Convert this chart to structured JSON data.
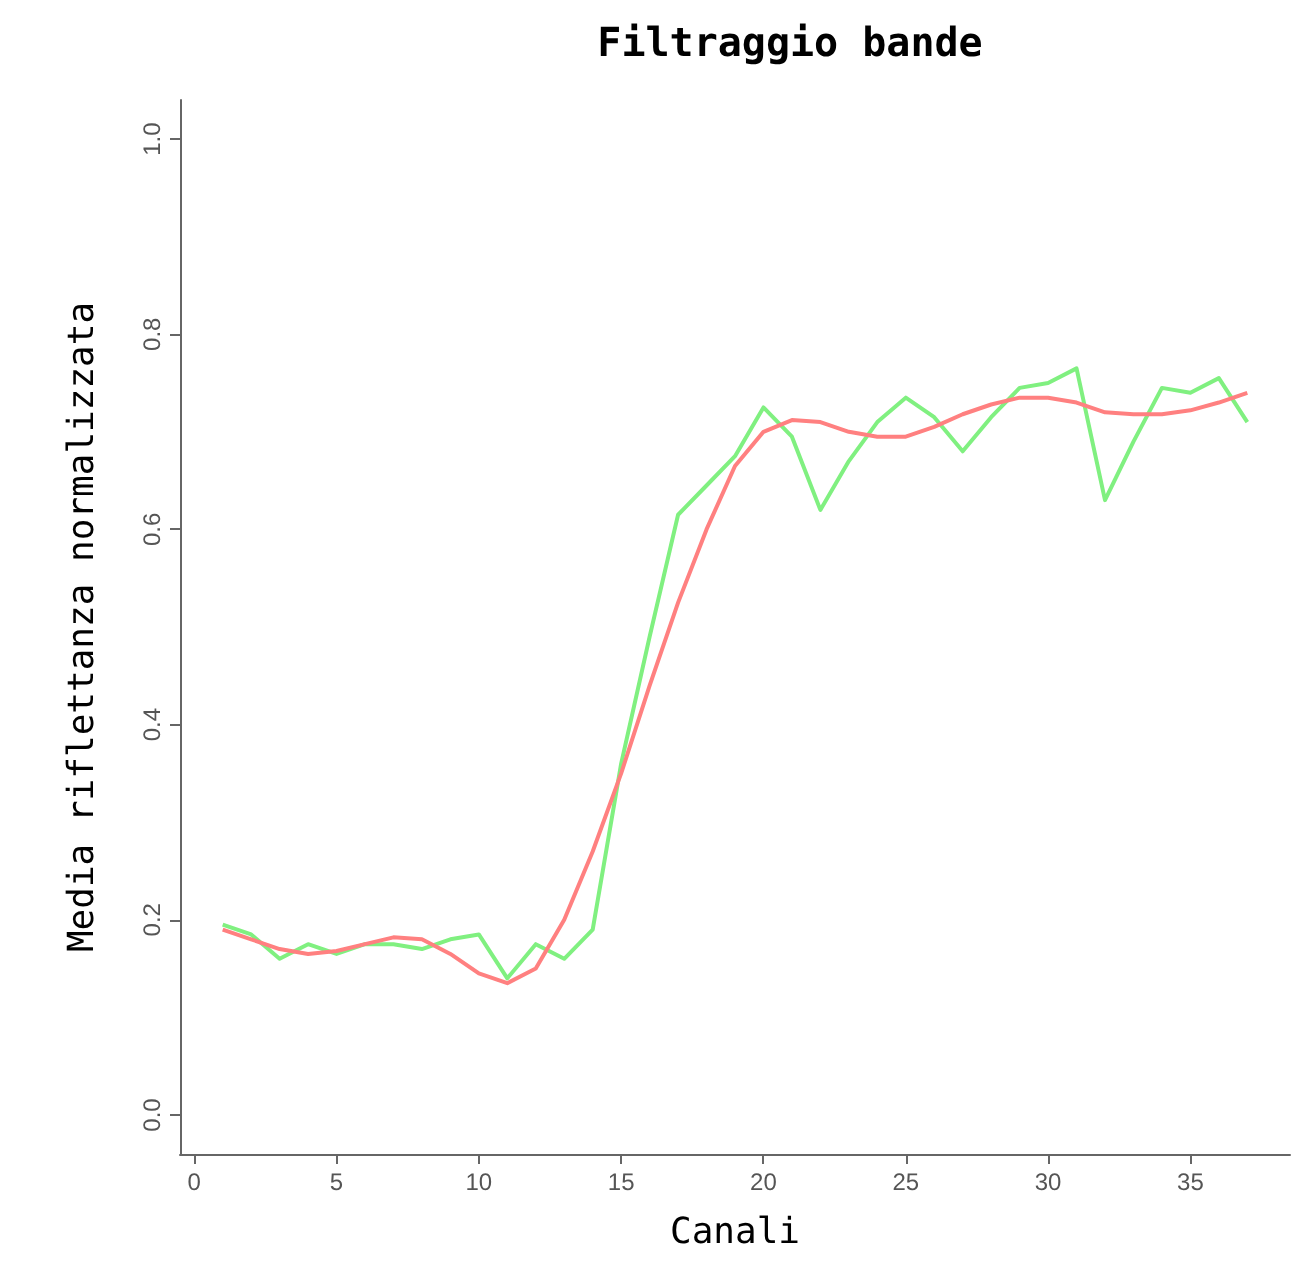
{
  "chart_data": {
    "type": "line",
    "title": "Filtraggio bande",
    "xlabel": "Canali",
    "ylabel": "Media riflettanza normalizzata",
    "x": [
      1,
      2,
      3,
      4,
      5,
      6,
      7,
      8,
      9,
      10,
      11,
      12,
      13,
      14,
      15,
      16,
      17,
      18,
      19,
      20,
      21,
      22,
      23,
      24,
      25,
      26,
      27,
      28,
      29,
      30,
      31,
      32,
      33,
      34,
      35,
      36,
      37
    ],
    "series": [
      {
        "color": "#80f080",
        "values": [
          0.195,
          0.185,
          0.16,
          0.175,
          0.165,
          0.175,
          0.175,
          0.17,
          0.18,
          0.185,
          0.14,
          0.175,
          0.16,
          0.19,
          0.36,
          0.49,
          0.615,
          0.645,
          0.675,
          0.725,
          0.695,
          0.62,
          0.67,
          0.71,
          0.735,
          0.715,
          0.68,
          0.715,
          0.745,
          0.75,
          0.765,
          0.63,
          0.69,
          0.745,
          0.74,
          0.755,
          0.71
        ]
      },
      {
        "color": "#ff8080",
        "values": [
          0.19,
          0.18,
          0.17,
          0.165,
          0.168,
          0.175,
          0.182,
          0.18,
          0.165,
          0.145,
          0.135,
          0.15,
          0.2,
          0.27,
          0.35,
          0.44,
          0.525,
          0.6,
          0.665,
          0.7,
          0.712,
          0.71,
          0.7,
          0.695,
          0.695,
          0.705,
          0.718,
          0.728,
          0.735,
          0.735,
          0.73,
          0.72,
          0.718,
          0.718,
          0.722,
          0.73,
          0.74
        ]
      }
    ],
    "xlim": [
      -0.5,
      38.5
    ],
    "xticks": [
      0,
      5,
      10,
      15,
      20,
      25,
      30,
      35
    ],
    "ylim": [
      -0.04,
      1.04
    ],
    "yticks": [
      {
        "value": 0,
        "label": "0.0"
      },
      {
        "value": 0.2,
        "label": "0.2"
      },
      {
        "value": 0.4,
        "label": "0.4"
      },
      {
        "value": 0.6,
        "label": "0.6"
      },
      {
        "value": 0.8,
        "label": "0.8"
      },
      {
        "value": 1,
        "label": "1.0"
      }
    ],
    "grid": false,
    "marker": "none",
    "line_style": "solid"
  }
}
